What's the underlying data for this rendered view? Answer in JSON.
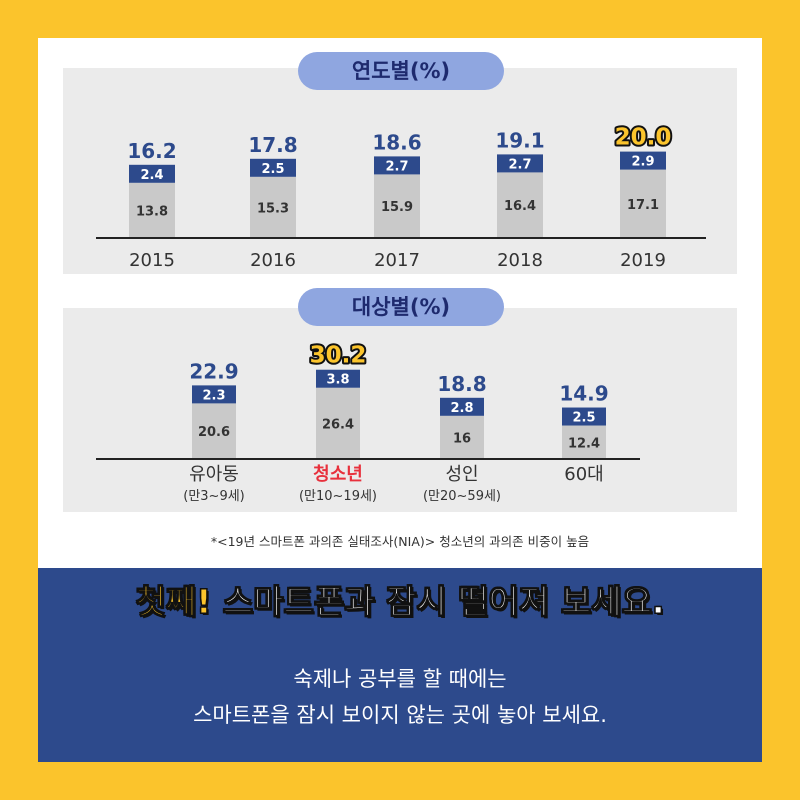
{
  "chart_data": [
    {
      "type": "bar",
      "stacked": true,
      "title": "연도별(%)",
      "categories": [
        "2015",
        "2016",
        "2017",
        "2018",
        "2019"
      ],
      "series": [
        {
          "values": [
            13.8,
            15.3,
            15.9,
            16.4,
            17.1
          ]
        },
        {
          "values": [
            2.4,
            2.5,
            2.7,
            2.7,
            2.9
          ]
        }
      ],
      "totals": [
        "16.2",
        "17.8",
        "18.6",
        "19.1",
        "20.0"
      ],
      "bottom_labels": [
        "13.8",
        "15.3",
        "15.9",
        "16.4",
        "17.1"
      ],
      "top_labels": [
        "2.4",
        "2.5",
        "2.7",
        "2.7",
        "2.9"
      ],
      "highlight_index": 4,
      "colors": {
        "bottom": "#C9C9C9",
        "top": "#2D4A8C",
        "total_text": "#2D4A8C",
        "highlight": "#FBC42C"
      }
    },
    {
      "type": "bar",
      "stacked": true,
      "title": "대상별(%)",
      "categories": [
        "유아동",
        "청소년",
        "성인",
        "60대"
      ],
      "sublabels": [
        "(만3~9세)",
        "(만10~19세)",
        "(만20~59세)",
        ""
      ],
      "series": [
        {
          "values": [
            20.6,
            26.4,
            16,
            12.4
          ]
        },
        {
          "values": [
            2.3,
            3.8,
            2.8,
            2.5
          ]
        }
      ],
      "totals": [
        "22.9",
        "30.2",
        "18.8",
        "14.9"
      ],
      "bottom_labels": [
        "20.6",
        "26.4",
        "16",
        "12.4"
      ],
      "top_labels": [
        "2.3",
        "3.8",
        "2.8",
        "2.5"
      ],
      "highlight_index": 1,
      "colors": {
        "bottom": "#C9C9C9",
        "top": "#2D4A8C",
        "total_text": "#2D4A8C",
        "highlight": "#FBC42C",
        "highlight_label": "#E8303C"
      }
    }
  ],
  "note": "*<19년 스마트폰 과의존 실태조사(NIA)> 청소년의 과의존 비중이 높음",
  "headline": {
    "accent": "첫째!",
    "rest": " 스마트폰과 잠시 떨어져 보세요."
  },
  "body": {
    "line1": "숙제나 공부를 할 때에는",
    "line2": "스마트폰을 잠시 보이지 않는 곳에 놓아 보세요."
  },
  "colors": {
    "background": "#FBC42C",
    "navy": "#2D4A8C",
    "pill": "#8FA6E0"
  }
}
